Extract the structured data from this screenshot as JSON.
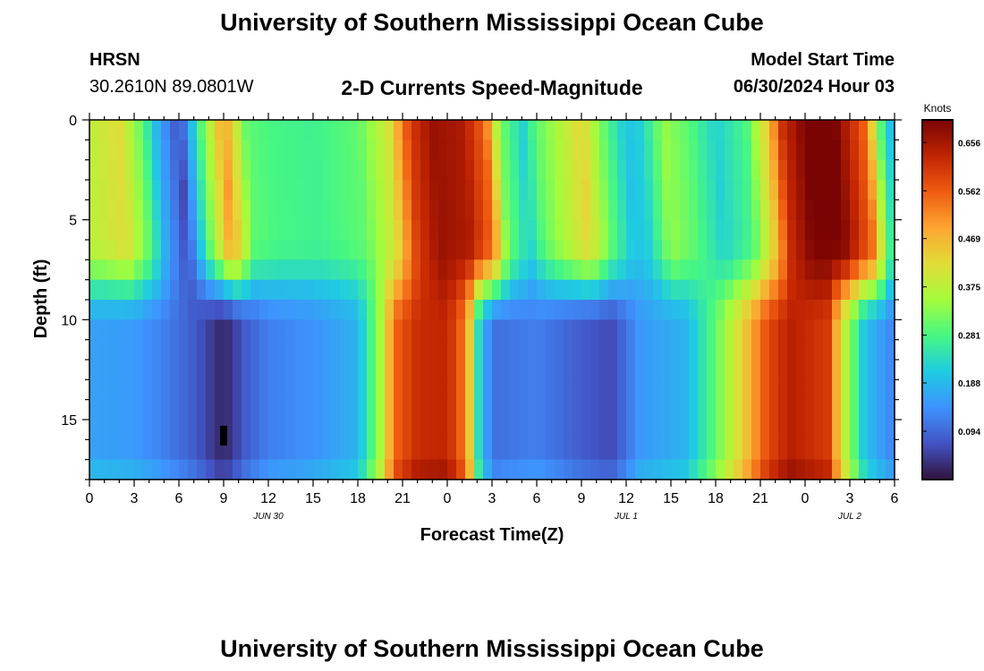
{
  "page": {
    "title": "University of Southern Mississippi Ocean Cube",
    "footer_title": "University of Southern Mississippi Ocean Cube",
    "station": "HRSN",
    "coords": "30.2610N  89.0801W",
    "plot_title": "2-D Currents Speed-Magnitude",
    "model_label": "Model Start Time",
    "model_time": "06/30/2024 Hour 03"
  },
  "chart_data": {
    "type": "heatmap",
    "title": "2-D Currents Speed-Magnitude",
    "xlabel": "Forecast Time(Z)",
    "ylabel": "Depth (ft)",
    "ylim": [
      0,
      18
    ],
    "y_ticks": [
      0,
      5,
      10,
      15
    ],
    "x_range_hours": [
      0,
      54
    ],
    "x_tick_labels": [
      "0",
      "3",
      "6",
      "9",
      "12",
      "15",
      "18",
      "21",
      "0",
      "3",
      "6",
      "9",
      "12",
      "15",
      "18",
      "21",
      "0",
      "3",
      "6"
    ],
    "date_labels": [
      {
        "label": "JUN 30",
        "hour": 12
      },
      {
        "label": "JUL 1",
        "hour": 36
      },
      {
        "label": "JUL 2",
        "hour": 51
      }
    ],
    "colorbar": {
      "label": "Knots",
      "min": 0.0,
      "max": 0.7,
      "tick_values": [
        0.094,
        0.188,
        0.281,
        0.375,
        0.469,
        0.562,
        0.656
      ],
      "tick_labels": [
        "0.094",
        "0.188",
        "0.281",
        "0.375",
        "0.469",
        "0.562",
        "0.656"
      ]
    },
    "speed_grid_spec": {
      "units": "knots",
      "n_time_steps": 90,
      "n_depth_bins": 18,
      "depth_step_ft": 1,
      "time_step_hours": 0.6,
      "surface_profile_knots": [
        [
          0,
          0.38
        ],
        [
          2,
          0.42
        ],
        [
          3.5,
          0.3
        ],
        [
          4.5,
          0.18
        ],
        [
          6,
          0.06
        ],
        [
          7.5,
          0.3
        ],
        [
          9,
          0.5
        ],
        [
          10.5,
          0.3
        ],
        [
          12,
          0.28
        ],
        [
          15,
          0.27
        ],
        [
          18,
          0.3
        ],
        [
          20,
          0.4
        ],
        [
          21.5,
          0.6
        ],
        [
          23,
          0.67
        ],
        [
          25,
          0.65
        ],
        [
          26.5,
          0.55
        ],
        [
          27.5,
          0.32
        ],
        [
          29,
          0.22
        ],
        [
          30,
          0.3
        ],
        [
          33,
          0.43
        ],
        [
          34.5,
          0.3
        ],
        [
          36,
          0.2
        ],
        [
          37,
          0.22
        ],
        [
          38.5,
          0.34
        ],
        [
          40,
          0.3
        ],
        [
          42,
          0.22
        ],
        [
          44,
          0.28
        ],
        [
          45.5,
          0.45
        ],
        [
          46.5,
          0.62
        ],
        [
          48,
          0.7
        ],
        [
          50,
          0.7
        ],
        [
          52,
          0.55
        ],
        [
          53,
          0.3
        ],
        [
          54,
          0.15
        ]
      ],
      "bottom_profile_knots": [
        [
          0,
          0.16
        ],
        [
          3,
          0.15
        ],
        [
          5,
          0.12
        ],
        [
          7,
          0.08
        ],
        [
          9,
          0.02
        ],
        [
          10.5,
          0.08
        ],
        [
          12,
          0.12
        ],
        [
          15,
          0.14
        ],
        [
          18,
          0.18
        ],
        [
          19.5,
          0.35
        ],
        [
          20.5,
          0.55
        ],
        [
          22,
          0.62
        ],
        [
          24,
          0.63
        ],
        [
          25.3,
          0.52
        ],
        [
          26,
          0.25
        ],
        [
          27,
          0.1
        ],
        [
          30,
          0.12
        ],
        [
          33,
          0.08
        ],
        [
          35,
          0.06
        ],
        [
          37,
          0.15
        ],
        [
          40,
          0.18
        ],
        [
          42,
          0.3
        ],
        [
          44,
          0.45
        ],
        [
          45.5,
          0.58
        ],
        [
          47,
          0.64
        ],
        [
          49.5,
          0.6
        ],
        [
          50.5,
          0.4
        ],
        [
          52,
          0.2
        ],
        [
          54,
          0.12
        ]
      ],
      "bottom_start_depth_ft": 10.5,
      "profile_shift_hours_at_bottom": -1.5,
      "near_bottom_extra_knots": 0.05,
      "min_marker": {
        "hour": 9,
        "depth_ft": 15.8,
        "value_knots": 0.0
      }
    }
  }
}
